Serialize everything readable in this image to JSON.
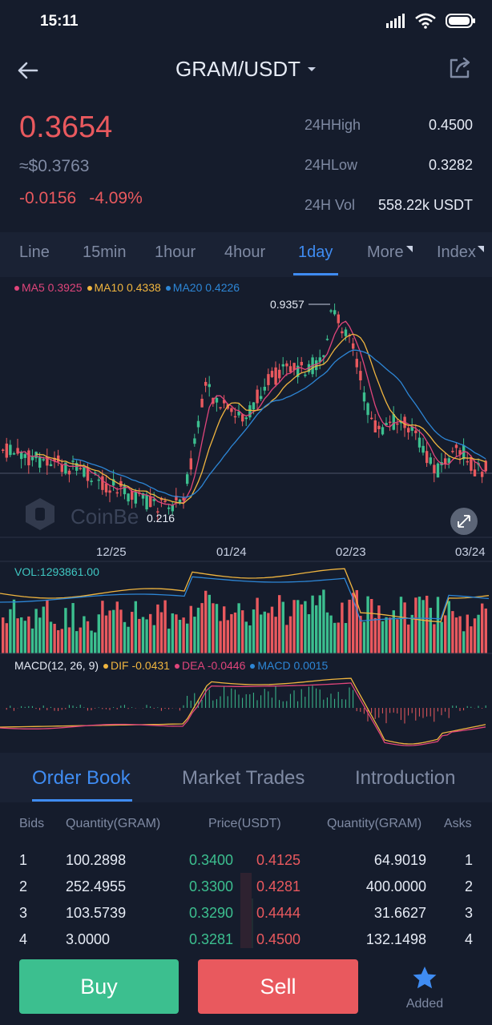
{
  "status": {
    "time": "15:11"
  },
  "header": {
    "pair": "GRAM/USDT"
  },
  "ticker": {
    "price": "0.3654",
    "usd": "≈$0.3763",
    "change_abs": "-0.0156",
    "change_pct": "-4.09%",
    "stats": [
      {
        "label": "24HHigh",
        "value": "0.4500"
      },
      {
        "label": "24HLow",
        "value": "0.3282"
      },
      {
        "label": "24H Vol",
        "value": "558.22k USDT"
      }
    ]
  },
  "timeframes": [
    "Line",
    "15min",
    "1hour",
    "4hour",
    "1day",
    "More",
    "Index"
  ],
  "active_timeframe": "1day",
  "chart": {
    "ma_legend": [
      {
        "label": "MA5 0.3925",
        "color": "#e0457b"
      },
      {
        "label": "MA10 0.4338",
        "color": "#f0b53f"
      },
      {
        "label": "MA20 0.4226",
        "color": "#2d86d6"
      }
    ],
    "high_label": "0.9357",
    "low_label": "0.216",
    "watermark": "CoinBe",
    "x_ticks": [
      "12/25",
      "01/24",
      "02/23",
      "03/24"
    ],
    "vol_label": "VOL:1293861.00",
    "macd_legend": [
      {
        "label": "MACD(12, 26, 9)",
        "color": "#e6ebf5"
      },
      {
        "label": "DIF -0.0431",
        "color": "#f0b53f"
      },
      {
        "label": "DEA -0.0446",
        "color": "#e0457b"
      },
      {
        "label": "MACD 0.0015",
        "color": "#2d86d6"
      }
    ]
  },
  "chart_data": {
    "type": "candlestick",
    "series": [
      {
        "name": "MA5",
        "value": 0.3925
      },
      {
        "name": "MA10",
        "value": 0.4338
      },
      {
        "name": "MA20",
        "value": 0.4226
      }
    ],
    "x_ticks": [
      "12/25",
      "01/24",
      "02/23",
      "03/24"
    ],
    "high": 0.9357,
    "low": 0.216,
    "volume": 1293861.0,
    "macd": {
      "params": "12, 26, 9",
      "dif": -0.0431,
      "dea": -0.0446,
      "macd": 0.0015
    }
  },
  "section_tabs": [
    "Order Book",
    "Market Trades",
    "Introduction"
  ],
  "order_book": {
    "headers": {
      "bids": "Bids",
      "qty_left": "Quantity(GRAM)",
      "price": "Price(USDT)",
      "qty_right": "Quantity(GRAM)",
      "asks": "Asks"
    },
    "rows": [
      {
        "index": "1",
        "bid_qty": "100.2898",
        "bid_price": "0.3400",
        "ask_price": "0.4125",
        "ask_qty": "64.9019",
        "ask_index": "1"
      },
      {
        "index": "2",
        "bid_qty": "252.4955",
        "bid_price": "0.3300",
        "ask_price": "0.4281",
        "ask_qty": "400.0000",
        "ask_index": "2"
      },
      {
        "index": "3",
        "bid_qty": "103.5739",
        "bid_price": "0.3290",
        "ask_price": "0.4444",
        "ask_qty": "31.6627",
        "ask_index": "3"
      },
      {
        "index": "4",
        "bid_qty": "3.0000",
        "bid_price": "0.3281",
        "ask_price": "0.4500",
        "ask_qty": "132.1498",
        "ask_index": "4"
      }
    ]
  },
  "actions": {
    "buy": "Buy",
    "sell": "Sell",
    "added": "Added"
  },
  "colors": {
    "up": "#3cbf8f",
    "down": "#e9595e",
    "accent": "#3f8cf2",
    "background": "#151c2c"
  }
}
